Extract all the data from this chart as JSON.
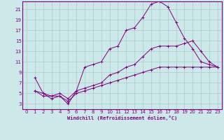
{
  "xlabel": "Windchill (Refroidissement éolien,°C)",
  "bg_color": "#cce8e8",
  "line_color": "#800080",
  "grid_color": "#aacccc",
  "xlim": [
    -0.5,
    23.5
  ],
  "ylim": [
    2,
    22.5
  ],
  "xticks": [
    0,
    1,
    2,
    3,
    4,
    5,
    6,
    7,
    8,
    9,
    10,
    11,
    12,
    13,
    14,
    15,
    16,
    17,
    18,
    19,
    20,
    21,
    22,
    23
  ],
  "yticks": [
    3,
    5,
    7,
    9,
    11,
    13,
    15,
    17,
    19,
    21
  ],
  "series": [
    {
      "x": [
        1,
        2,
        3,
        4,
        5,
        6,
        7,
        8,
        9,
        10,
        11,
        12,
        13,
        14,
        15,
        16,
        17,
        18,
        19,
        20,
        21,
        22,
        23
      ],
      "y": [
        8,
        5,
        4,
        4.5,
        3,
        5.5,
        10,
        10.5,
        11,
        13.5,
        14,
        17,
        17.5,
        19.5,
        22,
        22.5,
        21.5,
        18.5,
        15.5,
        13.5,
        11,
        10.5,
        10
      ]
    },
    {
      "x": [
        1,
        2,
        3,
        4,
        5,
        6,
        7,
        8,
        9,
        10,
        11,
        12,
        13,
        14,
        15,
        16,
        17,
        18,
        19,
        20,
        21,
        22,
        23
      ],
      "y": [
        5.5,
        5,
        4.5,
        5,
        4,
        5.5,
        6,
        6.5,
        7,
        8.5,
        9,
        10,
        10.5,
        12,
        13.5,
        14,
        14,
        14,
        14.5,
        15,
        13,
        11,
        10
      ]
    },
    {
      "x": [
        1,
        2,
        3,
        4,
        5,
        6,
        7,
        8,
        9,
        10,
        11,
        12,
        13,
        14,
        15,
        16,
        17,
        18,
        19,
        20,
        21,
        22,
        23
      ],
      "y": [
        5.5,
        4.5,
        4.5,
        4.5,
        3.5,
        5,
        5.5,
        6,
        6.5,
        7,
        7.5,
        8,
        8.5,
        9,
        9.5,
        10,
        10,
        10,
        10,
        10,
        10,
        10,
        10
      ]
    }
  ],
  "xlabel_fontsize": 5.0,
  "tick_fontsize": 5.0,
  "linewidth": 0.7,
  "markersize": 3.0
}
